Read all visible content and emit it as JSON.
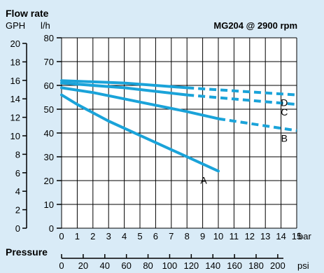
{
  "chart_data": {
    "type": "line",
    "title": "MG204 @ 2900 rpm",
    "ylabel": "Flow rate",
    "y_units": [
      "GPH",
      "l/h"
    ],
    "xlabel": "Pressure",
    "x_units": [
      "bar",
      "psi"
    ],
    "x_bar_ticks": [
      "0",
      "1",
      "2",
      "3",
      "4",
      "5",
      "6",
      "7",
      "8",
      "9",
      "10",
      "11",
      "12",
      "13",
      "14",
      "15"
    ],
    "x_psi_ticks": [
      "0",
      "20",
      "40",
      "60",
      "80",
      "100",
      "120",
      "140",
      "160",
      "180",
      "200"
    ],
    "y_lh_ticks": [
      "0",
      "10",
      "20",
      "30",
      "40",
      "50",
      "60",
      "70",
      "80"
    ],
    "y_gph_ticks": [
      "0",
      "2",
      "4",
      "6",
      "8",
      "10",
      "12",
      "14",
      "16",
      "18",
      "20"
    ],
    "xlim": [
      0,
      15
    ],
    "ylim": [
      0,
      80
    ],
    "grid": true,
    "series": [
      {
        "name": "A",
        "solid": [
          [
            0,
            56
          ],
          [
            1,
            52
          ],
          [
            3,
            45
          ],
          [
            5,
            39
          ],
          [
            7,
            33
          ],
          [
            9,
            27
          ],
          [
            10,
            24
          ]
        ],
        "dashed": []
      },
      {
        "name": "B",
        "solid": [
          [
            0,
            59
          ],
          [
            2,
            57
          ],
          [
            5,
            53
          ],
          [
            8,
            49
          ],
          [
            10,
            46
          ]
        ],
        "dashed": [
          [
            10,
            46
          ],
          [
            15,
            41
          ]
        ]
      },
      {
        "name": "C",
        "solid": [
          [
            0,
            61
          ],
          [
            4,
            59
          ],
          [
            8,
            56
          ]
        ],
        "dashed": [
          [
            8,
            56
          ],
          [
            15,
            52
          ]
        ]
      },
      {
        "name": "D",
        "solid": [
          [
            0,
            62
          ],
          [
            4,
            61
          ],
          [
            8,
            59
          ]
        ],
        "dashed": [
          [
            8,
            59
          ],
          [
            15,
            56
          ]
        ]
      }
    ],
    "line_color": "#1aa3d9",
    "grid_color": "#000000"
  }
}
